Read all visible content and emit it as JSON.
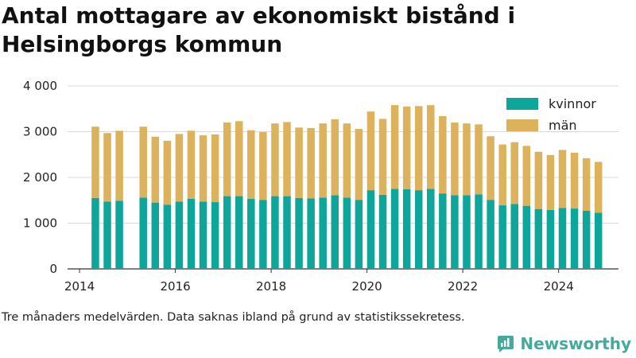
{
  "title": "Antal mottagare av ekonomiskt bistånd i Helsingborgs kommun",
  "caption": "Tre månaders medelvärden. Data saknas ibland på grund av statistikssekretess.",
  "brand": {
    "name": "Newsworthy",
    "color": "#45a99c"
  },
  "colors": {
    "kvinnor": "#0ea59a",
    "man": "#dcb25c",
    "grid": "#d9d9d9",
    "axis": "#333333"
  },
  "chart_data": {
    "type": "bar",
    "stacked": true,
    "x_unit": "year",
    "ylim": [
      0,
      4000
    ],
    "yticks": [
      0,
      1000,
      2000,
      3000,
      4000
    ],
    "ytick_labels": [
      "0",
      "1 000",
      "2 000",
      "3 000",
      "4 000"
    ],
    "xlim": [
      2013.75,
      2025.25
    ],
    "xticks": [
      2014,
      2016,
      2018,
      2020,
      2022,
      2024
    ],
    "xtick_labels": [
      "2014",
      "2016",
      "2018",
      "2020",
      "2022",
      "2024"
    ],
    "grid": "horizontal",
    "legend_position": "top-right",
    "x": [
      2014.33,
      2014.58,
      2014.83,
      2015.33,
      2015.58,
      2015.83,
      2016.08,
      2016.33,
      2016.58,
      2016.83,
      2017.08,
      2017.33,
      2017.58,
      2017.83,
      2018.08,
      2018.33,
      2018.58,
      2018.83,
      2019.08,
      2019.33,
      2019.58,
      2019.83,
      2020.08,
      2020.33,
      2020.58,
      2020.83,
      2021.08,
      2021.33,
      2021.58,
      2021.83,
      2022.08,
      2022.33,
      2022.58,
      2022.83,
      2023.08,
      2023.33,
      2023.58,
      2023.83,
      2024.08,
      2024.33,
      2024.58,
      2024.83
    ],
    "series": [
      {
        "name": "kvinnor",
        "color": "#0ea59a",
        "values": [
          1550,
          1470,
          1490,
          1560,
          1450,
          1400,
          1470,
          1530,
          1470,
          1460,
          1590,
          1590,
          1530,
          1510,
          1590,
          1590,
          1550,
          1540,
          1560,
          1610,
          1560,
          1510,
          1720,
          1620,
          1750,
          1740,
          1720,
          1750,
          1650,
          1610,
          1610,
          1630,
          1510,
          1390,
          1420,
          1380,
          1310,
          1290,
          1330,
          1320,
          1270,
          1230
        ]
      },
      {
        "name": "män",
        "color": "#dcb25c",
        "values": [
          1560,
          1500,
          1530,
          1550,
          1440,
          1400,
          1480,
          1490,
          1450,
          1480,
          1610,
          1640,
          1500,
          1480,
          1590,
          1620,
          1540,
          1540,
          1620,
          1660,
          1620,
          1550,
          1720,
          1660,
          1830,
          1810,
          1840,
          1830,
          1690,
          1590,
          1570,
          1530,
          1390,
          1330,
          1350,
          1310,
          1250,
          1200,
          1270,
          1220,
          1150,
          1110
        ]
      }
    ]
  }
}
